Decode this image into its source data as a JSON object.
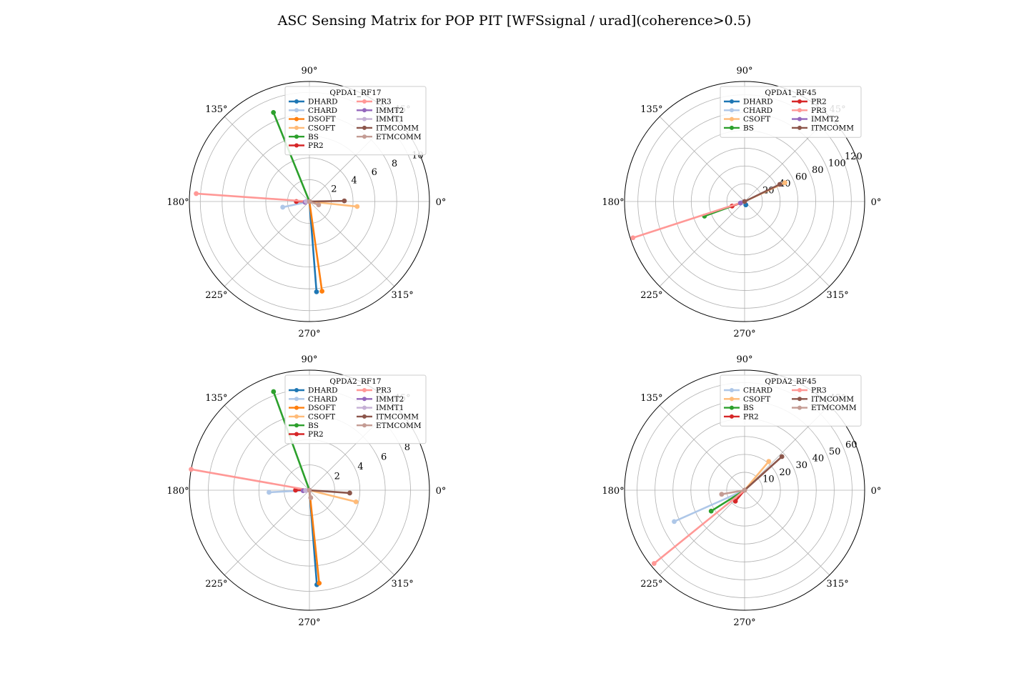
{
  "figure": {
    "suptitle": "ASC Sensing Matrix for POP PIT [WFSsignal / urad](coherence>0.5)"
  },
  "colors": {
    "DHARD": "#1f77b4",
    "CHARD": "#aec7e8",
    "DSOFT": "#ff7f0e",
    "CSOFT": "#ffbb78",
    "BS": "#2ca02c",
    "PR2": "#d62728",
    "PR3": "#ff9896",
    "IMMT2": "#9467bd",
    "IMMT1": "#c5b0d5",
    "ITMCOMM": "#8c564b",
    "ETMCOMM": "#c49c94"
  },
  "chart_data": [
    {
      "type": "polar",
      "title": "QPDA1_RF17",
      "angle_ticks": [
        "0°",
        "45°",
        "90°",
        "135°",
        "180°",
        "225°",
        "270°",
        "315°"
      ],
      "r_ticks": [
        2,
        4,
        6,
        8,
        10
      ],
      "rlim": [
        0,
        11
      ],
      "r_label_angle": 22.5,
      "legend_placement": "top-right",
      "series": [
        {
          "name": "DHARD",
          "angle_deg": 274.5,
          "r": 8.3
        },
        {
          "name": "CHARD",
          "angle_deg": 192,
          "r": 2.5
        },
        {
          "name": "DSOFT",
          "angle_deg": 278,
          "r": 8.3
        },
        {
          "name": "CSOFT",
          "angle_deg": 354,
          "r": 4.4
        },
        {
          "name": "BS",
          "angle_deg": 112,
          "r": 8.8
        },
        {
          "name": "PR2",
          "angle_deg": 180,
          "r": 1.2
        },
        {
          "name": "PR3",
          "angle_deg": 176,
          "r": 10.4
        },
        {
          "name": "IMMT2",
          "angle_deg": 190,
          "r": 0.4
        },
        {
          "name": "IMMT1",
          "angle_deg": 180,
          "r": 0.3
        },
        {
          "name": "ITMCOMM",
          "angle_deg": 1,
          "r": 3.2
        },
        {
          "name": "ETMCOMM",
          "angle_deg": 340,
          "r": 0.9
        }
      ]
    },
    {
      "type": "polar",
      "title": "QPDA1_RF45",
      "angle_ticks": [
        "0°",
        "45°",
        "90°",
        "135°",
        "180°",
        "225°",
        "270°",
        "315°"
      ],
      "r_ticks": [
        20,
        40,
        60,
        80,
        100,
        120
      ],
      "rlim": [
        0,
        135
      ],
      "r_label_angle": 22.5,
      "legend_placement": "top-right",
      "series": [
        {
          "name": "DHARD",
          "angle_deg": 290,
          "r": 4
        },
        {
          "name": "CHARD",
          "angle_deg": 200,
          "r": 3
        },
        {
          "name": "CSOFT",
          "angle_deg": 25,
          "r": 50
        },
        {
          "name": "BS",
          "angle_deg": 200,
          "r": 48
        },
        {
          "name": "PR2",
          "angle_deg": 200,
          "r": 15
        },
        {
          "name": "PR3",
          "angle_deg": 198,
          "r": 132
        },
        {
          "name": "IMMT2",
          "angle_deg": 200,
          "r": 5
        },
        {
          "name": "ITMCOMM",
          "angle_deg": 26,
          "r": 44
        }
      ]
    },
    {
      "type": "polar",
      "title": "QPDA2_RF17",
      "angle_ticks": [
        "0°",
        "45°",
        "90°",
        "135°",
        "180°",
        "225°",
        "270°",
        "315°"
      ],
      "r_ticks": [
        2,
        4,
        6,
        8
      ],
      "rlim": [
        0,
        9.5
      ],
      "r_label_angle": 22.5,
      "legend_placement": "top-right",
      "series": [
        {
          "name": "DHARD",
          "angle_deg": 274.5,
          "r": 7.5
        },
        {
          "name": "CHARD",
          "angle_deg": 183,
          "r": 3.2
        },
        {
          "name": "DSOFT",
          "angle_deg": 276,
          "r": 7.4
        },
        {
          "name": "CSOFT",
          "angle_deg": 346,
          "r": 3.8
        },
        {
          "name": "BS",
          "angle_deg": 110,
          "r": 8.3
        },
        {
          "name": "PR2",
          "angle_deg": 180,
          "r": 1.1
        },
        {
          "name": "PR3",
          "angle_deg": 170,
          "r": 9.5
        },
        {
          "name": "IMMT2",
          "angle_deg": 185,
          "r": 0.5
        },
        {
          "name": "IMMT1",
          "angle_deg": 185,
          "r": 0.3
        },
        {
          "name": "ITMCOMM",
          "angle_deg": 356,
          "r": 3.2
        },
        {
          "name": "ETMCOMM",
          "angle_deg": 280,
          "r": 0.6
        }
      ]
    },
    {
      "type": "polar",
      "title": "QPDA2_RF45",
      "angle_ticks": [
        "0°",
        "45°",
        "90°",
        "135°",
        "180°",
        "225°",
        "270°",
        "315°"
      ],
      "r_ticks": [
        10,
        20,
        30,
        40,
        50,
        60
      ],
      "rlim": [
        0,
        67
      ],
      "r_label_angle": 22.5,
      "legend_placement": "top-right",
      "series": [
        {
          "name": "CHARD",
          "angle_deg": 204,
          "r": 43
        },
        {
          "name": "CSOFT",
          "angle_deg": 50,
          "r": 21
        },
        {
          "name": "BS",
          "angle_deg": 212,
          "r": 22
        },
        {
          "name": "PR2",
          "angle_deg": 230,
          "r": 8
        },
        {
          "name": "PR3",
          "angle_deg": 219,
          "r": 65
        },
        {
          "name": "ITMCOMM",
          "angle_deg": 42,
          "r": 28
        },
        {
          "name": "ETMCOMM",
          "angle_deg": 190,
          "r": 13
        }
      ]
    }
  ]
}
